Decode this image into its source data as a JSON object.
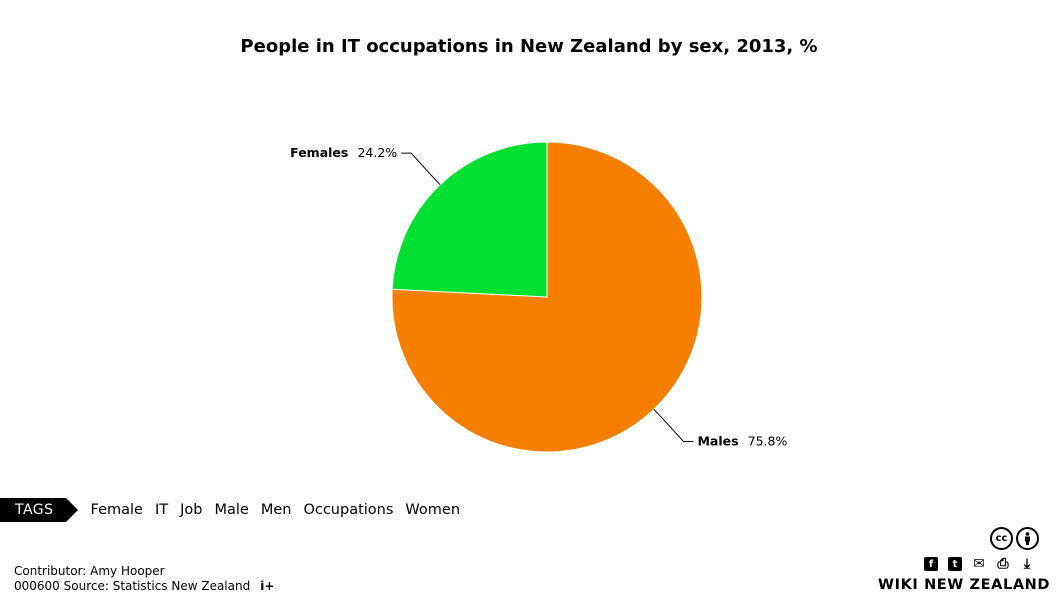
{
  "chart_data": {
    "type": "pie",
    "title": "People in IT occupations in New Zealand by sex, 2013, %",
    "slices": [
      {
        "name": "Males",
        "value": 75.8,
        "label": "75.8%",
        "color": "#f77f00"
      },
      {
        "name": "Females",
        "value": 24.2,
        "label": "24.2%",
        "color": "#00e033"
      }
    ]
  },
  "tags": {
    "badge": "TAGS",
    "items": [
      "Female",
      "IT",
      "Job",
      "Male",
      "Men",
      "Occupations",
      "Women"
    ]
  },
  "footer": {
    "contributor": "Contributor: Amy Hooper",
    "source": "000600 Source: Statistics New Zealand",
    "info": "i+",
    "brand": "WIKI NEW ZEALAND"
  },
  "icons": {
    "cc": [
      "cc-icon",
      "attribution-icon"
    ],
    "share": [
      "facebook-icon",
      "twitter-icon",
      "email-icon",
      "print-icon",
      "download-icon"
    ]
  }
}
